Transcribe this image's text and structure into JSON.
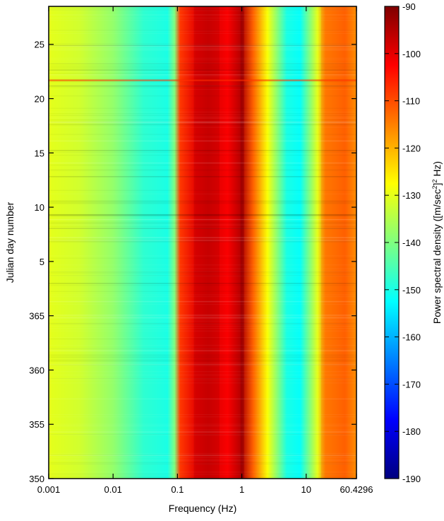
{
  "chart_data": {
    "type": "heatmap",
    "title": "",
    "xlabel": "Frequency (Hz)",
    "ylabel": "Julian day number",
    "x_scale": "log",
    "xlim": [
      0.001,
      60.4296
    ],
    "x_ticks": [
      0.001,
      0.01,
      0.1,
      1,
      10,
      60.4296
    ],
    "x_tick_labels": [
      "0.001",
      "0.01",
      "0.1",
      "1",
      "10",
      "60.4296"
    ],
    "ylim_days_since_start": [
      0,
      43.5
    ],
    "y_ticks": [
      {
        "label": "350",
        "day": 350
      },
      {
        "label": "355",
        "day": 355
      },
      {
        "label": "360",
        "day": 360
      },
      {
        "label": "365",
        "day": 365
      },
      {
        "label": "5",
        "day": 5
      },
      {
        "label": "10",
        "day": 10
      },
      {
        "label": "15",
        "day": 15
      },
      {
        "label": "20",
        "day": 20
      },
      {
        "label": "25",
        "day": 25
      }
    ],
    "colorbar": {
      "label_prefix": "Power spectral density ([m/sec",
      "label_sup": "2",
      "label_suffix": "]",
      "label_sup2": "2",
      "label_end": " Hz)",
      "range": [
        -190,
        -90
      ],
      "ticks": [
        "-90",
        "-100",
        "-110",
        "-120",
        "-130",
        "-140",
        "-150",
        "-160",
        "-170",
        "-180",
        "-190"
      ],
      "colormap": [
        "#00007f",
        "#0000ff",
        "#00ffff",
        "#ffff00",
        "#ff0000",
        "#7f0000"
      ]
    },
    "psd_profile": [
      {
        "f": 0.001,
        "psd": -130
      },
      {
        "f": 0.003,
        "psd": -132
      },
      {
        "f": 0.01,
        "psd": -138
      },
      {
        "f": 0.03,
        "psd": -148
      },
      {
        "f": 0.07,
        "psd": -150
      },
      {
        "f": 0.09,
        "psd": -140
      },
      {
        "f": 0.11,
        "psd": -108
      },
      {
        "f": 0.2,
        "psd": -100
      },
      {
        "f": 0.3,
        "psd": -98
      },
      {
        "f": 0.6,
        "psd": -102
      },
      {
        "f": 1.0,
        "psd": -95
      },
      {
        "f": 1.5,
        "psd": -112
      },
      {
        "f": 2.5,
        "psd": -128
      },
      {
        "f": 5,
        "psd": -150
      },
      {
        "f": 8,
        "psd": -152
      },
      {
        "f": 15,
        "psd": -130
      },
      {
        "f": 20,
        "psd": -115
      },
      {
        "f": 40,
        "psd": -112
      },
      {
        "f": 60.4296,
        "psd": -118
      }
    ]
  }
}
